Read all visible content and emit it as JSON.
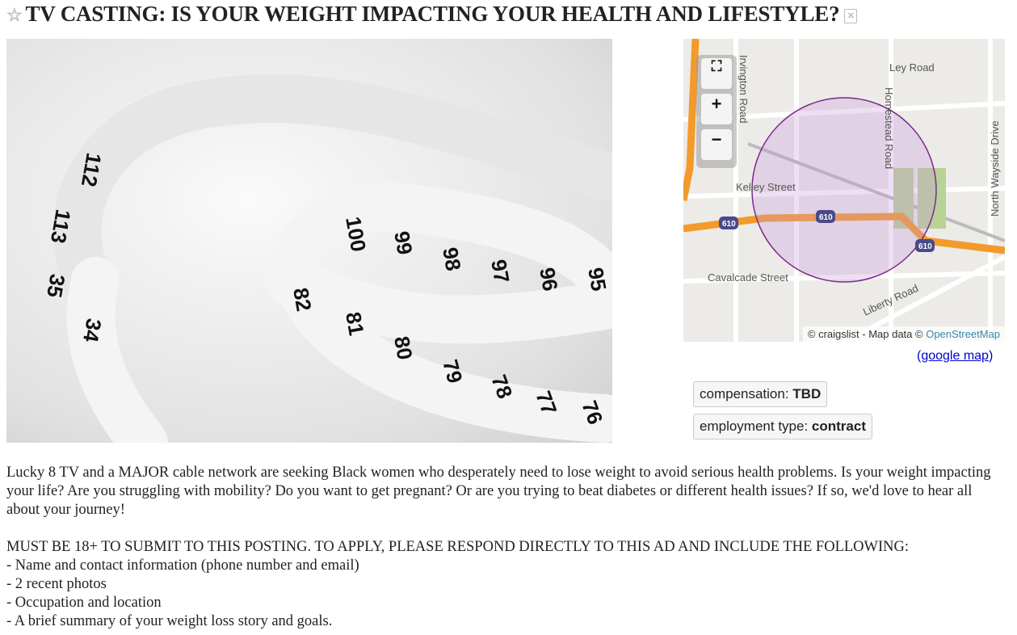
{
  "title": "TV CASTING: IS YOUR WEIGHT IMPACTING YOUR HEALTH AND LIFESTYLE?",
  "icons": {
    "favorite": "star-icon",
    "hide": "hide-posting-icon"
  },
  "map": {
    "streets": [
      "Ley Road",
      "Kelley Street",
      "Cavalcade Street",
      "Homestead Road",
      "North Wayside Drive",
      "Irvington Road",
      "Liberty Road"
    ],
    "highway_shield": "610",
    "attribution_prefix": "© craigslist - Map data © ",
    "attribution_link": "OpenStreetMap",
    "controls": {
      "fullscreen": "⛶",
      "zoom_in": "+",
      "zoom_out": "−"
    }
  },
  "google_map": {
    "open": "(",
    "label": "google map",
    "close": ")"
  },
  "attributes": [
    {
      "label": "compensation: ",
      "value": "TBD"
    },
    {
      "label": "employment type: ",
      "value": "contract"
    }
  ],
  "body": {
    "paragraph1": "Lucky 8 TV and a MAJOR cable network are seeking Black women who desperately need to lose weight to avoid serious health problems. Is your weight impacting your life? Are you struggling with mobility? Do you want to get pregnant? Or are you trying to beat diabetes or different health issues? If so, we'd love to hear all about your journey!",
    "paragraph2": "MUST BE 18+ TO SUBMIT TO THIS POSTING. TO APPLY, PLEASE RESPOND DIRECTLY TO THIS AD AND INCLUDE THE FOLLOWING:",
    "list": [
      "- Name and contact information (phone number and email)",
      "- 2 recent photos",
      "- Occupation and location",
      "- A brief summary of your weight loss story and goals."
    ]
  },
  "photo": {
    "tape_numbers": [
      "82",
      "81",
      "80",
      "79",
      "78",
      "77",
      "76",
      "100",
      "99",
      "98",
      "97",
      "96",
      "95",
      "112",
      "113",
      "35",
      "34"
    ]
  }
}
